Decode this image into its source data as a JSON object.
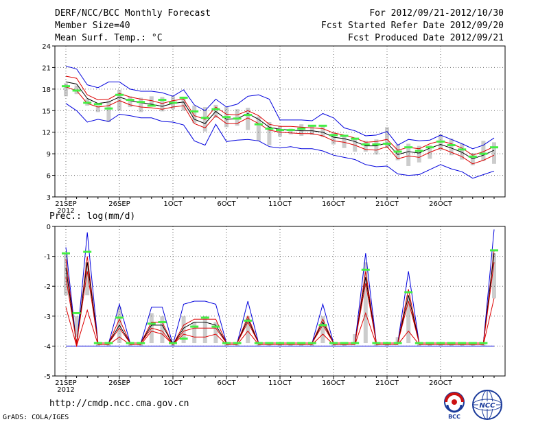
{
  "header": {
    "title": "DERF/NCC/BCC Monthly Forecast",
    "member_size": "Member Size=40",
    "variable": "Mean Surf. Temp.: °C",
    "period": "For 2012/09/21-2012/10/30",
    "started": "Fcst Started Refer Date 2012/09/20",
    "produced": "Fcst Produced Date 2012/09/21"
  },
  "footer": {
    "url": "http://cmdp.ncc.cma.gov.cn",
    "credit": "GrADS: COLA/IGES",
    "logo1_text": "BCC",
    "logo2_text": "NCC"
  },
  "colors": {
    "mean": "#000000",
    "inner": "#dd0000",
    "outer": "#0000dd",
    "obs": "#44ee44",
    "bar": "#cccccc",
    "grid": "#666666"
  },
  "chart_data": [
    {
      "type": "line",
      "title": "Mean Surf. Temp.: °C",
      "days": 40,
      "ylim": [
        3,
        24
      ],
      "yticks": [
        3,
        6,
        9,
        12,
        15,
        18,
        21,
        24
      ],
      "xtick_labels": [
        {
          "day": 0,
          "label": "21SEP"
        },
        {
          "day": 5,
          "label": "26SEP"
        },
        {
          "day": 10,
          "label": "1OCT"
        },
        {
          "day": 15,
          "label": "6OCT"
        },
        {
          "day": 20,
          "label": "11OCT"
        },
        {
          "day": 25,
          "label": "16OCT"
        },
        {
          "day": 30,
          "label": "21OCT"
        },
        {
          "day": 35,
          "label": "26OCT"
        }
      ],
      "year_label": "2012",
      "series": [
        {
          "name": "upper",
          "color_key": "outer",
          "values": [
            21.2,
            20.8,
            18.6,
            18.2,
            19.0,
            19.0,
            18.0,
            17.7,
            17.7,
            17.5,
            17.0,
            17.9,
            15.8,
            15.0,
            16.6,
            15.5,
            15.9,
            17.0,
            17.2,
            16.6,
            13.7,
            13.7,
            13.7,
            13.6,
            14.6,
            14.0,
            12.6,
            12.2,
            11.5,
            11.6,
            12.1,
            10.2,
            11.0,
            10.8,
            10.9,
            11.6,
            11.0,
            10.4,
            9.7,
            10.2,
            11.2
          ]
        },
        {
          "name": "upper-inner",
          "color_key": "inner",
          "values": [
            19.8,
            19.5,
            17.2,
            16.5,
            16.6,
            17.4,
            16.9,
            16.6,
            16.4,
            16.0,
            16.4,
            16.6,
            14.3,
            13.8,
            15.5,
            14.5,
            14.4,
            15.0,
            14.3,
            13.1,
            12.8,
            12.8,
            12.7,
            12.6,
            12.5,
            11.9,
            11.6,
            11.2,
            10.6,
            10.7,
            11.0,
            9.5,
            9.9,
            9.7,
            10.4,
            10.8,
            10.4,
            9.8,
            8.8,
            9.3,
            10.0
          ]
        },
        {
          "name": "mean",
          "color_key": "mean",
          "values": [
            19.0,
            18.7,
            16.7,
            16.0,
            16.2,
            16.9,
            16.4,
            16.1,
            15.9,
            15.6,
            16.0,
            16.2,
            13.8,
            13.2,
            14.9,
            13.8,
            13.9,
            14.6,
            13.8,
            12.7,
            12.4,
            12.3,
            12.2,
            12.2,
            12.0,
            11.3,
            11.1,
            10.7,
            10.1,
            10.1,
            10.5,
            8.9,
            9.3,
            9.1,
            9.8,
            10.3,
            9.8,
            9.2,
            8.3,
            8.8,
            9.5
          ]
        },
        {
          "name": "lower-inner",
          "color_key": "inner",
          "values": [
            18.3,
            17.8,
            16.0,
            15.5,
            15.7,
            16.4,
            15.8,
            15.5,
            15.4,
            15.2,
            15.5,
            15.7,
            13.2,
            12.6,
            14.3,
            13.2,
            13.2,
            14.0,
            13.2,
            12.3,
            12.0,
            11.9,
            11.8,
            11.8,
            11.5,
            10.8,
            10.6,
            10.2,
            9.6,
            9.5,
            10.0,
            8.3,
            8.7,
            8.5,
            9.2,
            9.8,
            9.2,
            8.6,
            7.6,
            8.1,
            8.8
          ]
        },
        {
          "name": "lower",
          "color_key": "outer",
          "values": [
            16.0,
            15.0,
            13.4,
            13.8,
            13.5,
            14.5,
            14.3,
            14.0,
            14.0,
            13.5,
            13.4,
            13.0,
            10.8,
            10.2,
            13.1,
            10.7,
            10.9,
            11.0,
            10.8,
            10.0,
            9.8,
            10.0,
            9.7,
            9.7,
            9.4,
            8.8,
            8.5,
            8.2,
            7.5,
            7.2,
            7.3,
            6.2,
            6.0,
            6.1,
            6.8,
            7.5,
            6.9,
            6.5,
            5.6,
            6.1,
            6.6
          ]
        }
      ],
      "bars": [
        [
          17.0,
          18.8
        ],
        [
          17.3,
          18.5
        ],
        [
          15.7,
          16.6
        ],
        [
          14.8,
          15.7
        ],
        [
          13.4,
          16.4
        ],
        [
          15.0,
          17.9
        ],
        [
          15.5,
          17.0
        ],
        [
          14.8,
          16.8
        ],
        [
          15.8,
          17.0
        ],
        [
          14.9,
          16.9
        ],
        [
          15.2,
          17.0
        ],
        [
          15.0,
          16.9
        ],
        [
          13.3,
          15.7
        ],
        [
          12.1,
          15.5
        ],
        [
          14.0,
          15.8
        ],
        [
          12.7,
          15.5
        ],
        [
          12.9,
          15.2
        ],
        [
          12.3,
          15.4
        ],
        [
          10.8,
          14.2
        ],
        [
          10.2,
          13.4
        ],
        [
          11.4,
          12.9
        ],
        [
          11.7,
          12.5
        ],
        [
          11.5,
          13.1
        ],
        [
          11.6,
          12.8
        ],
        [
          11.3,
          13.0
        ],
        [
          10.3,
          12.0
        ],
        [
          9.8,
          11.5
        ],
        [
          9.3,
          11.1
        ],
        [
          9.3,
          10.8
        ],
        [
          8.9,
          11.0
        ],
        [
          9.8,
          12.7
        ],
        [
          8.1,
          10.3
        ],
        [
          7.3,
          10.4
        ],
        [
          7.8,
          10.1
        ],
        [
          8.3,
          10.2
        ],
        [
          9.5,
          11.7
        ],
        [
          8.8,
          11.1
        ],
        [
          8.2,
          10.4
        ],
        [
          7.4,
          9.1
        ],
        [
          8.0,
          10.8
        ],
        [
          7.6,
          10.6
        ]
      ],
      "observed": [
        18.4,
        17.8,
        16.1,
        15.9,
        15.3,
        17.2,
        16.5,
        16.2,
        15.7,
        16.5,
        16.1,
        16.8,
        14.9,
        14.0,
        15.2,
        14.1,
        13.9,
        14.4,
        13.1,
        12.5,
        12.3,
        12.3,
        12.5,
        12.9,
        12.9,
        11.6,
        11.5,
        11.1,
        10.3,
        10.3,
        10.4,
        9.3,
        9.9,
        9.4,
        9.9,
        10.7,
        10.2,
        9.6,
        8.6,
        9.0,
        9.9
      ]
    },
    {
      "type": "line",
      "title": "Prec.: log(mm/d)",
      "days": 40,
      "ylim": [
        -5,
        0
      ],
      "yticks": [
        -5,
        -4,
        -3,
        -2,
        -1,
        0
      ],
      "baseline": -4,
      "xtick_labels": [
        {
          "day": 0,
          "label": "21SEP"
        },
        {
          "day": 5,
          "label": "26SEP"
        },
        {
          "day": 10,
          "label": "1OCT"
        },
        {
          "day": 15,
          "label": "6OCT"
        },
        {
          "day": 20,
          "label": "11OCT"
        },
        {
          "day": 25,
          "label": "16OCT"
        },
        {
          "day": 30,
          "label": "21OCT"
        },
        {
          "day": 35,
          "label": "26OCT"
        }
      ],
      "year_label": "2012",
      "series": [
        {
          "name": "upper",
          "color_key": "outer",
          "values": [
            -0.7,
            -4.0,
            -0.2,
            -3.9,
            -3.9,
            -2.6,
            -3.9,
            -3.9,
            -2.7,
            -2.7,
            -3.95,
            -2.6,
            -2.5,
            -2.5,
            -2.6,
            -3.9,
            -3.9,
            -2.5,
            -3.9,
            -3.9,
            -3.9,
            -3.9,
            -3.9,
            -3.9,
            -2.6,
            -3.9,
            -3.9,
            -3.9,
            -0.9,
            -3.9,
            -3.9,
            -3.9,
            -1.5,
            -3.9,
            -3.9,
            -3.9,
            -3.9,
            -3.9,
            -3.9,
            -3.9,
            -0.1
          ]
        },
        {
          "name": "upper-inner",
          "color_key": "inner",
          "values": [
            -1.1,
            -4.0,
            -1.0,
            -3.9,
            -3.9,
            -3.1,
            -3.9,
            -3.9,
            -3.2,
            -3.2,
            -3.95,
            -3.3,
            -3.1,
            -3.1,
            -3.1,
            -3.9,
            -3.9,
            -3.0,
            -3.9,
            -3.9,
            -3.9,
            -3.9,
            -3.9,
            -3.9,
            -3.1,
            -3.9,
            -3.9,
            -3.9,
            -1.5,
            -3.9,
            -3.9,
            -3.9,
            -2.1,
            -3.9,
            -3.9,
            -3.9,
            -3.9,
            -3.9,
            -3.9,
            -3.9,
            -0.8
          ]
        },
        {
          "name": "mean",
          "color_key": "mean",
          "values": [
            -1.4,
            -3.9,
            -1.2,
            -3.9,
            -3.9,
            -3.3,
            -3.9,
            -3.9,
            -3.3,
            -3.3,
            -3.95,
            -3.4,
            -3.2,
            -3.2,
            -3.3,
            -3.9,
            -3.9,
            -3.1,
            -3.9,
            -3.9,
            -3.9,
            -3.9,
            -3.9,
            -3.9,
            -3.2,
            -3.9,
            -3.9,
            -3.9,
            -1.7,
            -3.9,
            -3.9,
            -3.9,
            -2.3,
            -3.9,
            -3.9,
            -3.9,
            -3.9,
            -3.9,
            -3.9,
            -3.9,
            -0.9
          ]
        },
        {
          "name": "lower-inner",
          "color_key": "inner",
          "values": [
            -1.7,
            -3.9,
            -1.5,
            -3.9,
            -3.9,
            -3.4,
            -3.9,
            -3.9,
            -3.4,
            -3.5,
            -3.95,
            -3.5,
            -3.4,
            -3.4,
            -3.4,
            -3.9,
            -3.9,
            -3.2,
            -3.9,
            -3.9,
            -3.9,
            -3.9,
            -3.9,
            -3.9,
            -3.3,
            -3.9,
            -3.9,
            -3.9,
            -1.9,
            -3.9,
            -3.9,
            -3.9,
            -2.5,
            -3.9,
            -3.9,
            -3.9,
            -3.9,
            -3.9,
            -3.9,
            -3.9,
            -1.2
          ]
        },
        {
          "name": "lower",
          "color_key": "inner",
          "values": [
            -2.7,
            -4.0,
            -2.8,
            -3.95,
            -3.95,
            -3.7,
            -3.95,
            -3.95,
            -3.5,
            -3.6,
            -3.95,
            -3.6,
            -3.7,
            -3.7,
            -3.6,
            -3.95,
            -3.95,
            -3.5,
            -3.95,
            -3.95,
            -3.95,
            -3.95,
            -3.95,
            -3.95,
            -3.6,
            -3.95,
            -3.95,
            -3.95,
            -2.9,
            -3.95,
            -3.95,
            -3.95,
            -3.5,
            -3.95,
            -3.95,
            -3.95,
            -3.95,
            -3.95,
            -3.95,
            -3.95,
            -2.4
          ]
        }
      ],
      "bars": [
        [
          -2.3,
          -0.9
        ],
        [
          -3.7,
          -3.0
        ],
        [
          -2.3,
          -1.2
        ],
        [
          -4.0,
          -3.9
        ],
        [
          -4.0,
          -3.9
        ],
        [
          -3.9,
          -2.7
        ],
        [
          -4.0,
          -3.9
        ],
        [
          -4.0,
          -3.9
        ],
        [
          -3.9,
          -2.9
        ],
        [
          -3.9,
          -3.0
        ],
        [
          -4.0,
          -3.9
        ],
        [
          -3.9,
          -3.0
        ],
        [
          -3.9,
          -3.2
        ],
        [
          -3.9,
          -3.0
        ],
        [
          -3.9,
          -3.2
        ],
        [
          -4.0,
          -3.9
        ],
        [
          -4.0,
          -3.9
        ],
        [
          -3.9,
          -3.0
        ],
        [
          -4.0,
          -3.9
        ],
        [
          -4.0,
          -3.9
        ],
        [
          -4.0,
          -3.9
        ],
        [
          -4.0,
          -3.9
        ],
        [
          -4.0,
          -3.9
        ],
        [
          -4.0,
          -3.9
        ],
        [
          -3.9,
          -3.0
        ],
        [
          -4.0,
          -3.9
        ],
        [
          -4.0,
          -3.9
        ],
        [
          -3.9,
          -3.6
        ],
        [
          -3.9,
          -1.2
        ],
        [
          -4.0,
          -3.9
        ],
        [
          -4.0,
          -3.9
        ],
        [
          -3.9,
          -3.7
        ],
        [
          -3.9,
          -2.3
        ],
        [
          -4.0,
          -3.9
        ],
        [
          -4.0,
          -3.9
        ],
        [
          -4.0,
          -3.9
        ],
        [
          -4.0,
          -3.9
        ],
        [
          -4.0,
          -3.9
        ],
        [
          -4.0,
          -3.9
        ],
        [
          -4.0,
          -3.9
        ],
        [
          -2.4,
          -0.9
        ]
      ],
      "observed": [
        -0.9,
        -2.9,
        -0.85,
        -3.9,
        -3.9,
        -3.05,
        -3.9,
        -3.9,
        -3.25,
        -3.2,
        -3.9,
        -3.75,
        -3.35,
        -3.05,
        -3.35,
        -3.9,
        -3.9,
        -3.15,
        -3.9,
        -3.9,
        -3.9,
        -3.9,
        -3.9,
        -3.9,
        -3.3,
        -3.9,
        -3.9,
        -3.9,
        -1.45,
        -3.9,
        -3.9,
        -3.9,
        -2.2,
        -3.9,
        -3.9,
        -3.9,
        -3.9,
        -3.9,
        -3.9,
        -3.9,
        -0.8
      ]
    }
  ]
}
